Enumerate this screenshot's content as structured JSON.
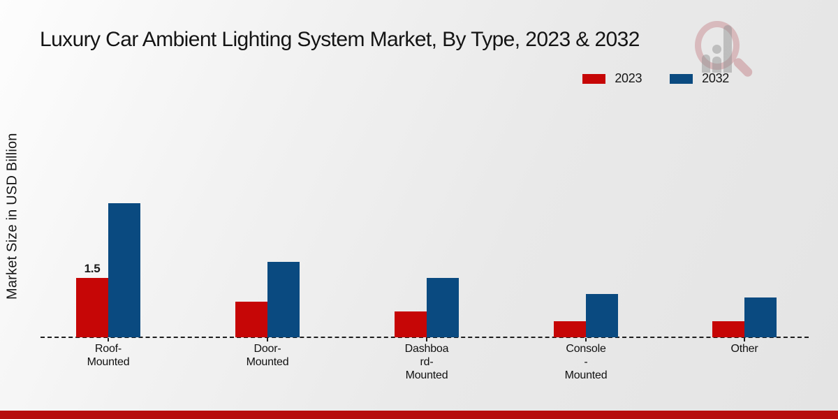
{
  "chart_data": {
    "type": "bar",
    "title": "Luxury Car Ambient Lighting System Market, By Type, 2023 & 2032",
    "xlabel": "",
    "ylabel": "Market Size in USD Billion",
    "categories": [
      "Roof-Mounted",
      "Door-Mounted",
      "Dashboard-Mounted",
      "Console-Mounted",
      "Other"
    ],
    "category_label_lines": [
      [
        "Roof-",
        "Mounted"
      ],
      [
        "Door-",
        "Mounted"
      ],
      [
        "Dashboa",
        "rd-",
        "Mounted"
      ],
      [
        "Console",
        "-",
        "Mounted"
      ],
      [
        "Other"
      ]
    ],
    "series": [
      {
        "name": "2023",
        "color": "#c60606",
        "values": [
          1.5,
          0.9,
          0.65,
          0.4,
          0.4
        ]
      },
      {
        "name": "2032",
        "color": "#0a4a80",
        "values": [
          3.4,
          1.9,
          1.5,
          1.1,
          1.0
        ]
      }
    ],
    "bar_labels": [
      {
        "series": "2023",
        "category_index": 0,
        "text": "1.5"
      }
    ],
    "ylim": [
      0,
      4
    ],
    "grid": false,
    "legend_position": "top-right",
    "baseline_style": "dashed"
  },
  "footer": {
    "accent_color": "#b60d0d"
  }
}
